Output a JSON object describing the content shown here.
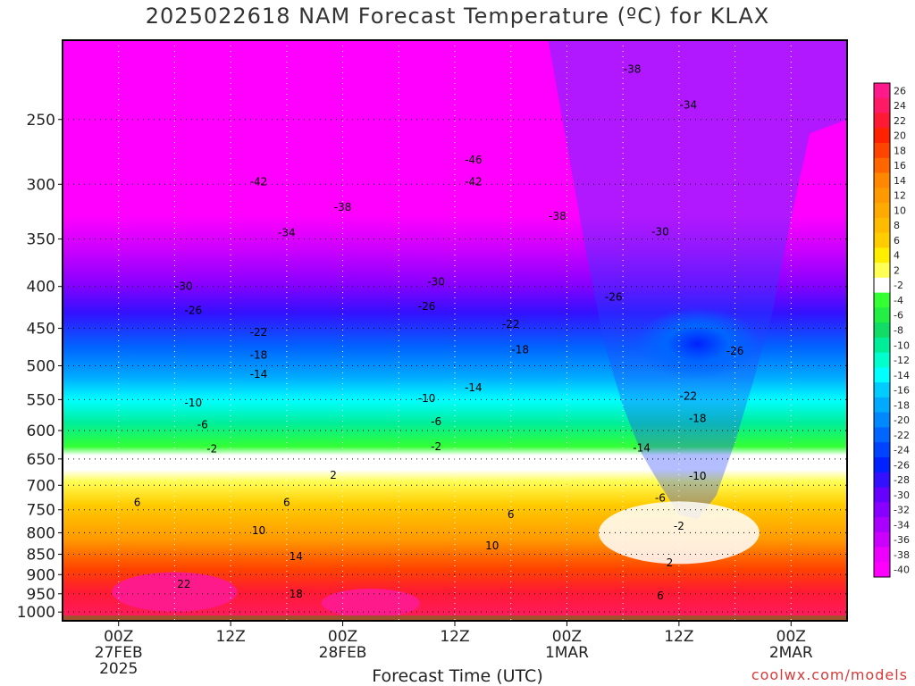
{
  "chart_data": {
    "type": "heatmap",
    "title": "2025022618 NAM Forecast Temperature (ºC) for KLAX",
    "xlabel": "Forecast Time (UTC)",
    "ylabel": "",
    "y_scale": "log",
    "y_inverted": true,
    "ylim": [
      1025,
      200
    ],
    "y_ticks": [
      250,
      300,
      350,
      400,
      450,
      500,
      550,
      600,
      650,
      700,
      750,
      800,
      850,
      900,
      950,
      1000
    ],
    "x_ticks": [
      {
        "h": 6,
        "line1": "00Z",
        "line2": "27FEB",
        "line3": "2025"
      },
      {
        "h": 18,
        "line1": "12Z",
        "line2": "",
        "line3": ""
      },
      {
        "h": 30,
        "line1": "00Z",
        "line2": "28FEB",
        "line3": ""
      },
      {
        "h": 42,
        "line1": "12Z",
        "line2": "",
        "line3": ""
      },
      {
        "h": 54,
        "line1": "00Z",
        "line2": "1MAR",
        "line3": ""
      },
      {
        "h": 66,
        "line1": "12Z",
        "line2": "",
        "line3": ""
      },
      {
        "h": 78,
        "line1": "00Z",
        "line2": "2MAR",
        "line3": ""
      }
    ],
    "xlim": [
      0,
      84
    ],
    "colorbar": {
      "labels": [
        "26",
        "24",
        "22",
        "20",
        "18",
        "16",
        "14",
        "12",
        "10",
        "8",
        "6",
        "4",
        "2",
        "-2",
        "-4",
        "-6",
        "-8",
        "-10",
        "-12",
        "-14",
        "-16",
        "-18",
        "-20",
        "-22",
        "-24",
        "-26",
        "-28",
        "-30",
        "-32",
        "-34",
        "-36",
        "-38",
        "-40"
      ],
      "colors": [
        "#ff1a8c",
        "#ff1a66",
        "#ff1a33",
        "#ff2200",
        "#ff4400",
        "#ff6600",
        "#ff8800",
        "#ff9900",
        "#ffaa00",
        "#ffbb00",
        "#ffcc00",
        "#ffee00",
        "#ffff55",
        "#ffffff",
        "#33ff33",
        "#22ee44",
        "#11dd66",
        "#00ee99",
        "#00ffcc",
        "#00ffff",
        "#00ccff",
        "#00aaff",
        "#0088ff",
        "#0066ff",
        "#0044ff",
        "#0022ff",
        "#3311ff",
        "#6600ff",
        "#8800ff",
        "#aa00ff",
        "#cc00ff",
        "#ee00ff",
        "#ff00ff"
      ]
    },
    "contour_labels": [
      {
        "v": "-38",
        "h": 61,
        "p": 217
      },
      {
        "v": "-34",
        "h": 67,
        "p": 240
      },
      {
        "v": "-46",
        "h": 44,
        "p": 280
      },
      {
        "v": "-42",
        "h": 21,
        "p": 298
      },
      {
        "v": "-42",
        "h": 44,
        "p": 298
      },
      {
        "v": "-38",
        "h": 30,
        "p": 320
      },
      {
        "v": "-38",
        "h": 53,
        "p": 328
      },
      {
        "v": "-34",
        "h": 24,
        "p": 344
      },
      {
        "v": "-30",
        "h": 64,
        "p": 343
      },
      {
        "v": "-30",
        "h": 13,
        "p": 400
      },
      {
        "v": "-30",
        "h": 40,
        "p": 395
      },
      {
        "v": "-26",
        "h": 14,
        "p": 428
      },
      {
        "v": "-26",
        "h": 39,
        "p": 423
      },
      {
        "v": "-26",
        "h": 59,
        "p": 412
      },
      {
        "v": "-26",
        "h": 72,
        "p": 480
      },
      {
        "v": "-22",
        "h": 21,
        "p": 455
      },
      {
        "v": "-22",
        "h": 48,
        "p": 445
      },
      {
        "v": "-22",
        "h": 67,
        "p": 545
      },
      {
        "v": "-18",
        "h": 21,
        "p": 485
      },
      {
        "v": "-18",
        "h": 49,
        "p": 478
      },
      {
        "v": "-18",
        "h": 68,
        "p": 580
      },
      {
        "v": "-14",
        "h": 21,
        "p": 512
      },
      {
        "v": "-14",
        "h": 44,
        "p": 532
      },
      {
        "v": "-14",
        "h": 62,
        "p": 630
      },
      {
        "v": "-10",
        "h": 14,
        "p": 555
      },
      {
        "v": "-10",
        "h": 39,
        "p": 548
      },
      {
        "v": "-10",
        "h": 68,
        "p": 682
      },
      {
        "v": "-6",
        "h": 15,
        "p": 590
      },
      {
        "v": "-6",
        "h": 40,
        "p": 585
      },
      {
        "v": "-6",
        "h": 64,
        "p": 725
      },
      {
        "v": "-2",
        "h": 16,
        "p": 632
      },
      {
        "v": "-2",
        "h": 40,
        "p": 628
      },
      {
        "v": "-2",
        "h": 66,
        "p": 785
      },
      {
        "v": "2",
        "h": 29,
        "p": 680
      },
      {
        "v": "2",
        "h": 65,
        "p": 870
      },
      {
        "v": "6",
        "h": 8,
        "p": 735
      },
      {
        "v": "6",
        "h": 24,
        "p": 735
      },
      {
        "v": "6",
        "h": 48,
        "p": 760
      },
      {
        "v": "6",
        "h": 64,
        "p": 955
      },
      {
        "v": "10",
        "h": 21,
        "p": 795
      },
      {
        "v": "10",
        "h": 46,
        "p": 830
      },
      {
        "v": "14",
        "h": 25,
        "p": 855
      },
      {
        "v": "18",
        "h": 25,
        "p": 950
      },
      {
        "v": "22",
        "h": 13,
        "p": 925
      }
    ]
  },
  "credit": "coolwx.com/models"
}
